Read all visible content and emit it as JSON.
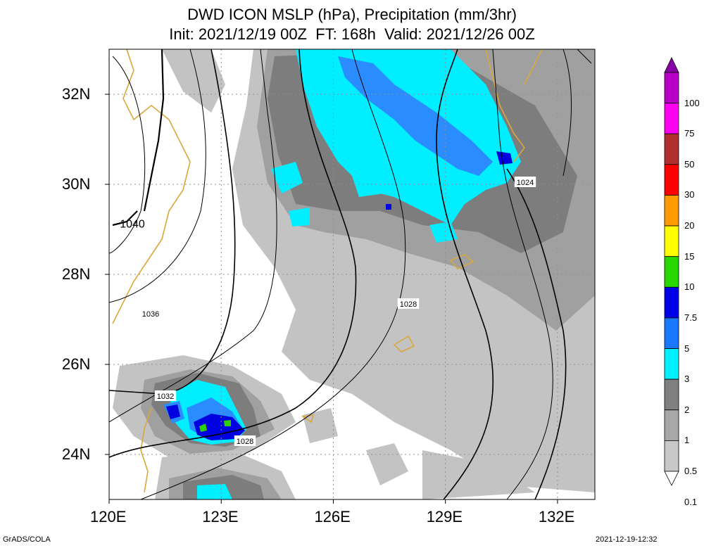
{
  "title": {
    "line1": "DWD ICON MSLP (hPa), Precipitation (mm/3hr)",
    "line2": "Init: 2021/12/19 00Z  FT: 168h  Valid: 2021/12/26 00Z"
  },
  "axes": {
    "lat_labels": [
      "32N",
      "30N",
      "28N",
      "26N",
      "24N"
    ],
    "lon_labels": [
      "120E",
      "123E",
      "126E",
      "129E",
      "132E"
    ]
  },
  "isobar_labels": [
    "1040",
    "1036",
    "1032",
    "1028",
    "1028",
    "1024"
  ],
  "colorbar": {
    "labels": [
      "100",
      "75",
      "50",
      "30",
      "20",
      "15",
      "10",
      "7.5",
      "5",
      "3",
      "2",
      "1",
      "0.5",
      "0.1"
    ],
    "colors": [
      "#8a00a8",
      "#b800c8",
      "#ff00f0",
      "#b03030",
      "#ff0000",
      "#ff9a00",
      "#ffff00",
      "#28d800",
      "#0000e8",
      "#1a78ff",
      "#00f0ff",
      "#808080",
      "#a8a8a8",
      "#c8c8c8",
      "#ffffff"
    ]
  },
  "colors": {
    "coast": "#d9a73c",
    "gray_light": "#c3c3c3",
    "gray_mid": "#a0a0a0",
    "gray_dark": "#7d7d7d",
    "cyan": "#00eeff",
    "blue_light": "#2a8cff",
    "blue": "#0000e0",
    "green": "#30d000"
  },
  "footer": {
    "left": "GrADS/COLA",
    "right": "2021-12-19-12:32"
  }
}
